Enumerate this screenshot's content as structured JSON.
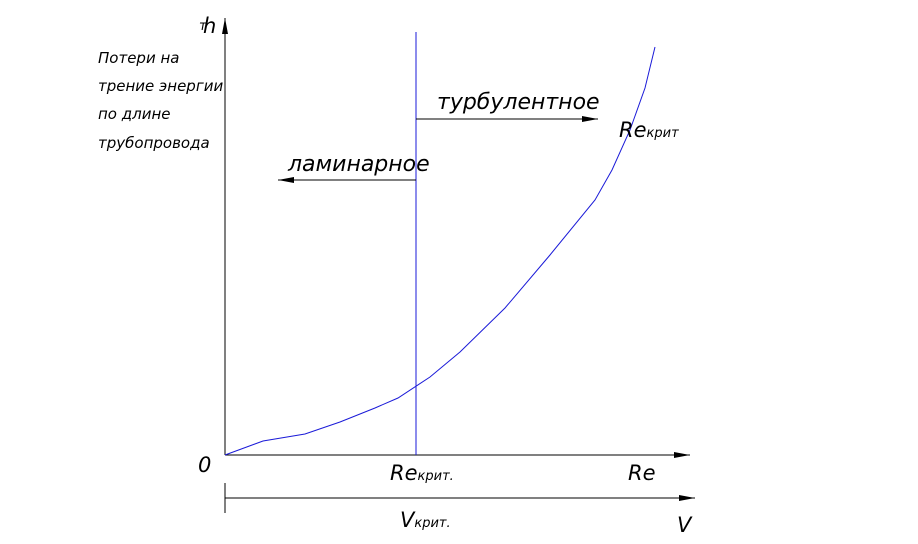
{
  "axes": {
    "y_label_small": "т",
    "y_label": "h",
    "x_label": "Re",
    "x2_label": "V",
    "origin": "0"
  },
  "annotation": {
    "lines": [
      "Потери на",
      "трение энергии",
      "по длине",
      "трубопровода"
    ]
  },
  "regions": {
    "turbulent": "турбулентное",
    "laminar": "ламинарное"
  },
  "critical_points": {
    "curve": {
      "symbol": "Re",
      "subscript": "крит"
    },
    "re_axis": {
      "symbol": "Re",
      "subscript": "крит."
    },
    "v_axis": {
      "symbol": "V",
      "subscript": "крит."
    }
  }
}
